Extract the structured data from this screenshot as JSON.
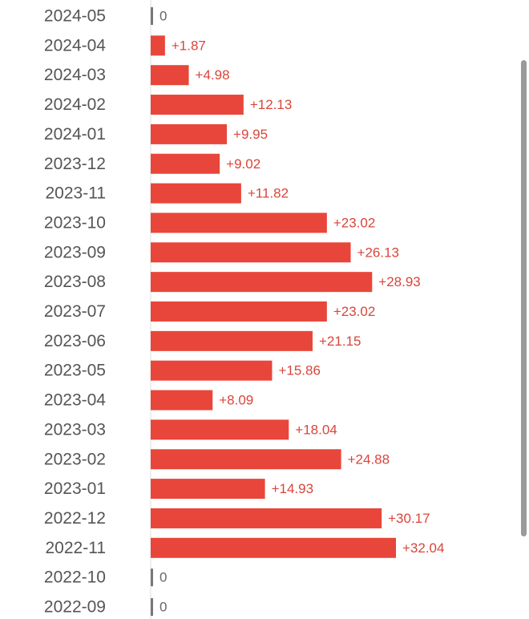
{
  "chart_data": {
    "type": "bar",
    "orientation": "horizontal",
    "categories": [
      "2024-05",
      "2024-04",
      "2024-03",
      "2024-02",
      "2024-01",
      "2023-12",
      "2023-11",
      "2023-10",
      "2023-09",
      "2023-08",
      "2023-07",
      "2023-06",
      "2023-05",
      "2023-04",
      "2023-03",
      "2023-02",
      "2023-01",
      "2022-12",
      "2022-11",
      "2022-10",
      "2022-09"
    ],
    "values": [
      0,
      1.87,
      4.98,
      12.13,
      9.95,
      9.02,
      11.82,
      23.02,
      26.13,
      28.93,
      23.02,
      21.15,
      15.86,
      8.09,
      18.04,
      24.88,
      14.93,
      30.17,
      32.04,
      0,
      0
    ],
    "value_labels": [
      "0",
      "+1.87",
      "+4.98",
      "+12.13",
      "+9.95",
      "+9.02",
      "+11.82",
      "+23.02",
      "+26.13",
      "+28.93",
      "+23.02",
      "+21.15",
      "+15.86",
      "+8.09",
      "+18.04",
      "+24.88",
      "+14.93",
      "+30.17",
      "+32.04",
      "0",
      "0"
    ],
    "xlim": [
      0,
      32.04
    ],
    "grid": false,
    "legend": "none"
  },
  "colors": {
    "bar": "#e8463a",
    "value_label_positive": "#d9453a",
    "value_label_zero": "#666666",
    "zero_marker": "#777777",
    "axis": "#dddddd",
    "category_label": "#555555"
  }
}
